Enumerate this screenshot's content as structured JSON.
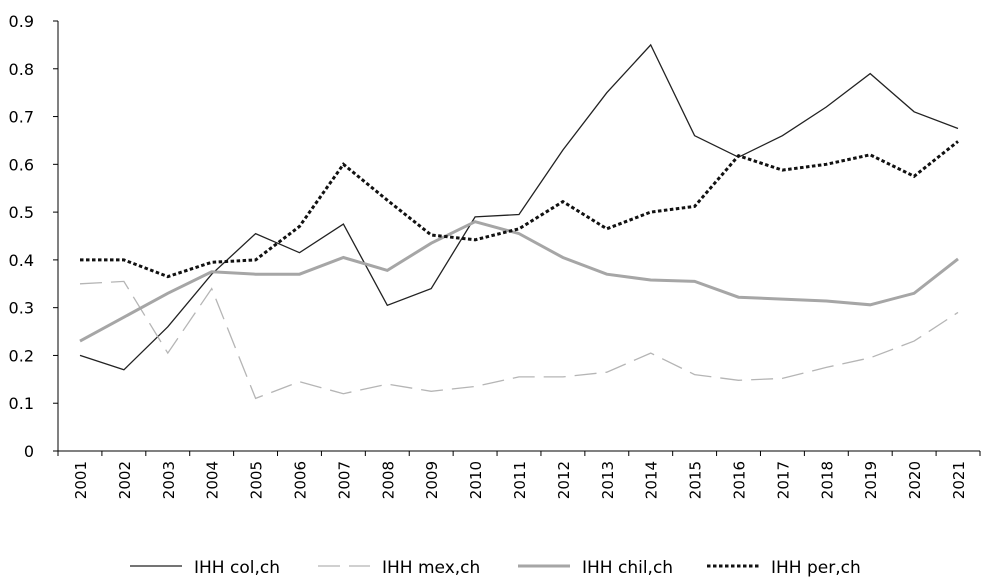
{
  "chart_data": {
    "type": "line",
    "title": "",
    "xlabel": "",
    "ylabel": "",
    "ylim": [
      0,
      0.9
    ],
    "yticks": [
      "0",
      "0.1",
      "0.2",
      "0.3",
      "0.4",
      "0.5",
      "0.6",
      "0.7",
      "0.8",
      "0.9"
    ],
    "grid": false,
    "legend_position": "bottom",
    "categories": [
      "2001",
      "2002",
      "2003",
      "2004",
      "2005",
      "2006",
      "2007",
      "2008",
      "2009",
      "2010",
      "2011",
      "2012",
      "2013",
      "2014",
      "2015",
      "2016",
      "2017",
      "2018",
      "2019",
      "2020",
      "2021"
    ],
    "series": [
      {
        "name": "IHH col,ch",
        "color": "#222222",
        "style": "solid-thin",
        "values": [
          0.2,
          0.17,
          0.26,
          0.37,
          0.455,
          0.415,
          0.475,
          0.305,
          0.34,
          0.49,
          0.495,
          0.63,
          0.75,
          0.85,
          0.66,
          0.615,
          0.66,
          0.72,
          0.79,
          0.71,
          0.675
        ]
      },
      {
        "name": "IHH mex,ch",
        "color": "#b5b5b5",
        "style": "dashed",
        "values": [
          0.35,
          0.355,
          0.205,
          0.34,
          0.11,
          0.145,
          0.12,
          0.14,
          0.125,
          0.135,
          0.155,
          0.155,
          0.165,
          0.205,
          0.16,
          0.148,
          0.152,
          0.175,
          0.195,
          0.23,
          0.29
        ]
      },
      {
        "name": "IHH chil,ch",
        "color": "#a6a6a6",
        "style": "solid-thick",
        "values": [
          0.23,
          0.28,
          0.33,
          0.375,
          0.37,
          0.37,
          0.405,
          0.378,
          0.435,
          0.48,
          0.455,
          0.405,
          0.37,
          0.358,
          0.355,
          0.322,
          0.318,
          0.314,
          0.306,
          0.33,
          0.402
        ]
      },
      {
        "name": "IHH per,ch",
        "color": "#111111",
        "style": "dotted",
        "values": [
          0.4,
          0.4,
          0.365,
          0.395,
          0.4,
          0.47,
          0.6,
          0.525,
          0.452,
          0.442,
          0.465,
          0.522,
          0.465,
          0.5,
          0.512,
          0.618,
          0.588,
          0.6,
          0.62,
          0.575,
          0.648
        ]
      }
    ]
  }
}
